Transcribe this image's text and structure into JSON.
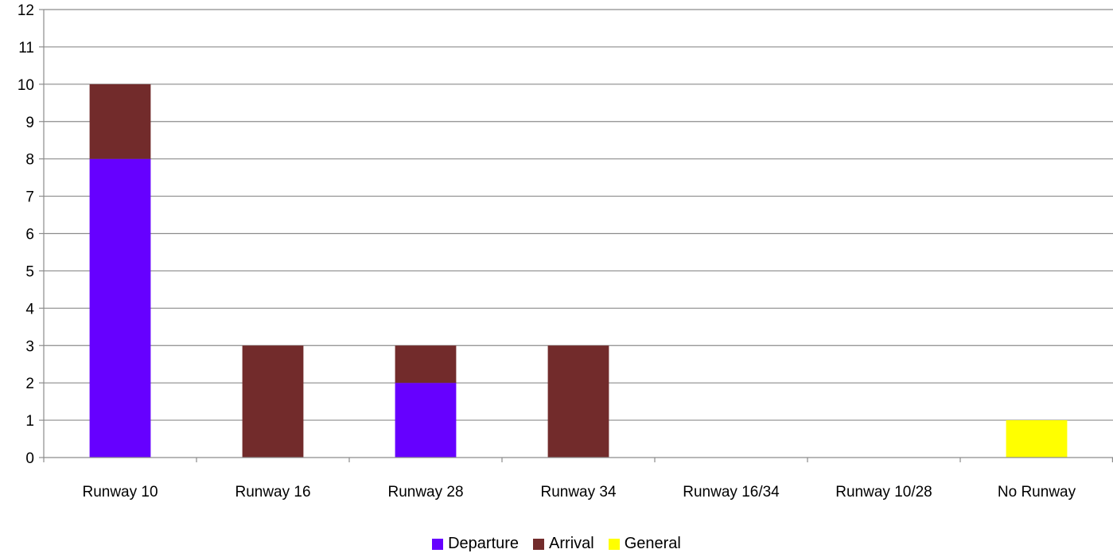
{
  "chart_data": {
    "type": "bar",
    "stacked": true,
    "categories": [
      "Runway 10",
      "Runway 16",
      "Runway 28",
      "Runway 34",
      "Runway 16/34",
      "Runway 10/28",
      "No Runway"
    ],
    "series": [
      {
        "name": "Departure",
        "color": "#6600FF",
        "values": [
          8,
          0,
          2,
          0,
          0,
          0,
          0
        ]
      },
      {
        "name": "Arrival",
        "color": "#722B2B",
        "values": [
          2,
          3,
          1,
          3,
          0,
          0,
          0
        ]
      },
      {
        "name": "General",
        "color": "#FFFF00",
        "values": [
          0,
          0,
          0,
          0,
          0,
          0,
          1
        ]
      }
    ],
    "ylim": [
      0,
      12
    ],
    "yticks": [
      0,
      1,
      2,
      3,
      4,
      5,
      6,
      7,
      8,
      9,
      10,
      11,
      12
    ],
    "grid": true,
    "legend_position": "bottom"
  }
}
